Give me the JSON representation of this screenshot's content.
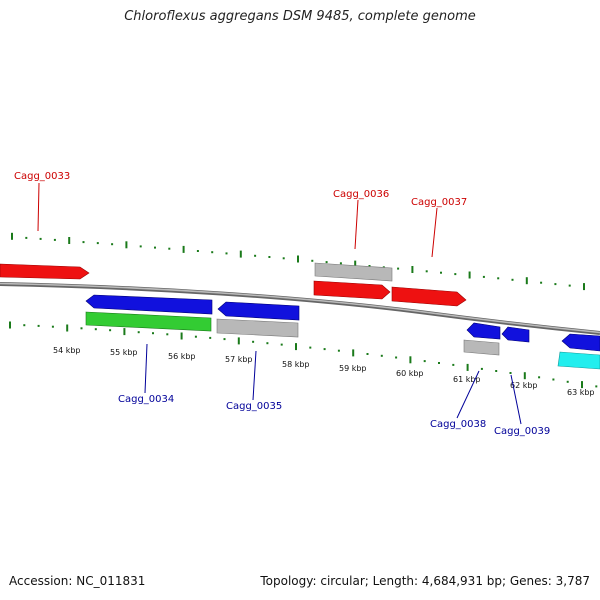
{
  "title": "Chloroflexus aggregans DSM 9485, complete genome",
  "footer": {
    "accession": "Accession: NC_011831",
    "summary": "Topology: circular; Length: 4,684,931 bp; Genes: 3,787"
  },
  "colors": {
    "forward_label": "#cc0000",
    "reverse_label": "#000099",
    "tick_mark": "#1a7a1a",
    "backbone": "#888888",
    "red": "#ee1111",
    "blue": "#1111dd",
    "green": "#33cc33",
    "gray": "#b8b8b8",
    "cyan": "#22eeee"
  },
  "scale": {
    "unit": "kbp",
    "labels": [
      "54 kbp",
      "55 kbp",
      "56 kbp",
      "57 kbp",
      "58 kbp",
      "59 kbp",
      "60 kbp",
      "61 kbp",
      "62 kbp",
      "63 kbp"
    ]
  },
  "gene_labels": [
    {
      "text": "Cagg_0033",
      "strand": "forward"
    },
    {
      "text": "Cagg_0036",
      "strand": "forward"
    },
    {
      "text": "Cagg_0037",
      "strand": "forward"
    },
    {
      "text": "Cagg_0034",
      "strand": "reverse"
    },
    {
      "text": "Cagg_0035",
      "strand": "reverse"
    },
    {
      "text": "Cagg_0038",
      "strand": "reverse"
    },
    {
      "text": "Cagg_0039",
      "strand": "reverse"
    }
  ],
  "features": [
    {
      "color": "red",
      "strand": "forward"
    },
    {
      "color": "gray",
      "strand": "forward"
    },
    {
      "color": "red",
      "strand": "forward"
    },
    {
      "color": "red",
      "strand": "forward"
    },
    {
      "color": "blue",
      "strand": "reverse"
    },
    {
      "color": "green",
      "strand": "reverse"
    },
    {
      "color": "blue",
      "strand": "reverse"
    },
    {
      "color": "gray",
      "strand": "reverse"
    },
    {
      "color": "blue",
      "strand": "reverse"
    },
    {
      "color": "blue",
      "strand": "reverse"
    },
    {
      "color": "gray",
      "strand": "reverse"
    },
    {
      "color": "blue",
      "strand": "reverse"
    },
    {
      "color": "cyan",
      "strand": "reverse"
    }
  ]
}
